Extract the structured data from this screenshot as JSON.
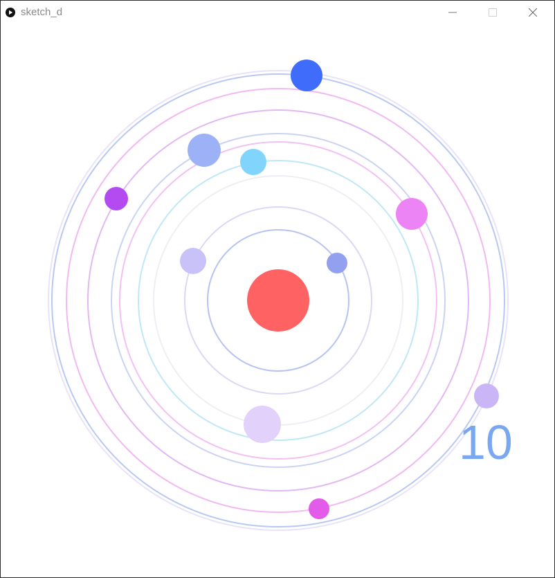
{
  "window": {
    "title": "sketch_d",
    "icons": {
      "app": "processing-play-icon",
      "minimize": "minimize-icon",
      "maximize": "maximize-icon",
      "close": "close-icon"
    }
  },
  "sketch": {
    "counter": "10",
    "colors": {
      "sun": "#ff6262",
      "orbit_blue": "#b7c4ef",
      "orbit_pink": "#f0b8f2",
      "orbit_cyan": "#bfe7f7",
      "orbit_lavender": "#ddd6f4",
      "orbit_gray": "#ececf2",
      "counter": "#7aa8ee"
    },
    "sun": {
      "name": "sun",
      "color": "#ff6262"
    },
    "planets": [
      {
        "name": "planet-blue-top",
        "color": "#3f6cfa"
      },
      {
        "name": "planet-periwinkle",
        "color": "#9db2f6"
      },
      {
        "name": "planet-sky",
        "color": "#81d4fb"
      },
      {
        "name": "planet-purple",
        "color": "#b44bf0"
      },
      {
        "name": "planet-magenta",
        "color": "#ec84f6"
      },
      {
        "name": "planet-lilac",
        "color": "#c9c2f9"
      },
      {
        "name": "planet-slate-blue",
        "color": "#939fef"
      },
      {
        "name": "planet-pale-lavender",
        "color": "#e2d1fa"
      },
      {
        "name": "planet-violet-right",
        "color": "#cab6f6"
      },
      {
        "name": "planet-fuchsia",
        "color": "#e35ce9"
      }
    ]
  }
}
